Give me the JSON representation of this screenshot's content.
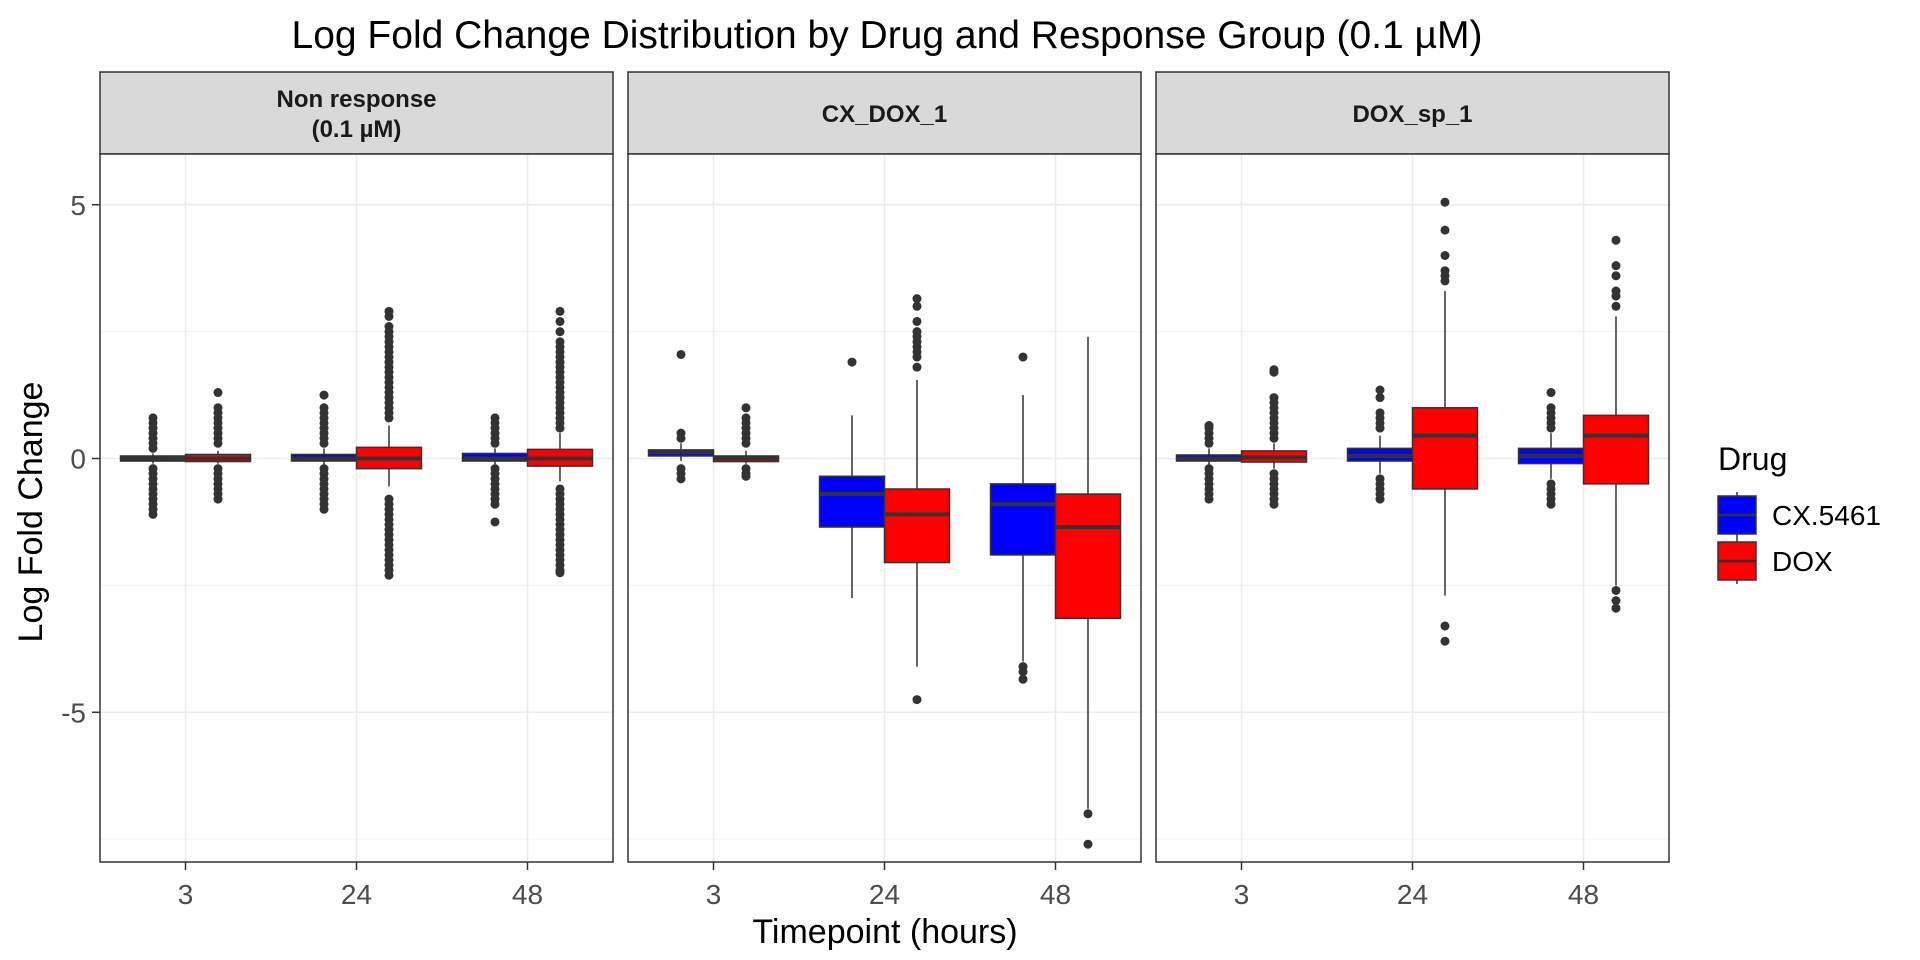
{
  "chart_data": {
    "type": "boxplot",
    "title": "Log Fold Change Distribution by Drug and Response Group (0.1 µM)",
    "xlabel": "Timepoint (hours)",
    "ylabel": "Log Fold Change",
    "ylim": [
      -7.95,
      6.0
    ],
    "yticks": [
      5,
      0,
      -5
    ],
    "ytick_labels": [
      "5",
      "0",
      "-5"
    ],
    "categories": [
      "3",
      "24",
      "48"
    ],
    "legend": {
      "title": "Drug",
      "position": "right",
      "entries": [
        {
          "name": "CX.5461",
          "color": "#0000ff"
        },
        {
          "name": "DOX",
          "color": "#ff0000"
        }
      ]
    },
    "grid": true,
    "panels": [
      {
        "label_lines": [
          "Non response",
          "(0.1 µM)"
        ],
        "boxes": [
          {
            "x": "3",
            "drug": "CX.5461",
            "lower_whisker": -0.1,
            "q1": -0.05,
            "median": 0.0,
            "q3": 0.05,
            "upper_whisker": 0.1,
            "outliers": [
              0.8,
              0.7,
              0.6,
              0.5,
              0.4,
              0.3,
              0.2,
              -0.2,
              -0.3,
              -0.4,
              -0.5,
              -0.6,
              -0.7,
              -0.8,
              -0.9,
              -1.0,
              -1.1
            ]
          },
          {
            "x": "3",
            "drug": "DOX",
            "lower_whisker": -0.1,
            "q1": -0.06,
            "median": 0.0,
            "q3": 0.08,
            "upper_whisker": 0.15,
            "outliers": [
              1.3,
              1.0,
              0.9,
              0.8,
              0.7,
              0.6,
              0.5,
              0.4,
              0.3,
              -0.2,
              -0.3,
              -0.4,
              -0.5,
              -0.6,
              -0.7,
              -0.8
            ]
          },
          {
            "x": "24",
            "drug": "CX.5461",
            "lower_whisker": -0.15,
            "q1": -0.05,
            "median": 0.0,
            "q3": 0.08,
            "upper_whisker": 0.2,
            "outliers": [
              1.25,
              1.0,
              0.9,
              0.8,
              0.7,
              0.6,
              0.5,
              0.4,
              0.3,
              -0.2,
              -0.3,
              -0.4,
              -0.5,
              -0.6,
              -0.7,
              -0.8,
              -0.9,
              -1.0
            ]
          },
          {
            "x": "24",
            "drug": "DOX",
            "lower_whisker": -0.55,
            "q1": -0.2,
            "median": 0.0,
            "q3": 0.22,
            "upper_whisker": 0.65,
            "outliers": [
              2.9,
              2.8,
              2.6,
              2.5,
              2.4,
              2.3,
              2.2,
              2.1,
              2.0,
              1.9,
              1.8,
              1.7,
              1.6,
              1.5,
              1.4,
              1.3,
              1.2,
              1.1,
              1.0,
              0.9,
              0.8,
              -0.8,
              -0.9,
              -1.0,
              -1.1,
              -1.2,
              -1.3,
              -1.4,
              -1.5,
              -1.6,
              -1.7,
              -1.8,
              -1.9,
              -2.0,
              -2.1,
              -2.2,
              -2.3
            ]
          },
          {
            "x": "48",
            "drug": "CX.5461",
            "lower_whisker": -0.15,
            "q1": -0.05,
            "median": 0.0,
            "q3": 0.1,
            "upper_whisker": 0.2,
            "outliers": [
              0.8,
              0.7,
              0.6,
              0.5,
              0.4,
              0.3,
              -0.2,
              -0.3,
              -0.4,
              -0.5,
              -0.6,
              -0.7,
              -0.8,
              -0.9,
              -1.25
            ]
          },
          {
            "x": "48",
            "drug": "DOX",
            "lower_whisker": -0.45,
            "q1": -0.15,
            "median": 0.0,
            "q3": 0.18,
            "upper_whisker": 0.5,
            "outliers": [
              2.9,
              2.7,
              2.5,
              2.3,
              2.2,
              2.1,
              2.0,
              1.9,
              1.8,
              1.7,
              1.6,
              1.5,
              1.4,
              1.3,
              1.2,
              1.1,
              1.0,
              0.9,
              0.8,
              0.7,
              0.6,
              -0.6,
              -0.7,
              -0.8,
              -0.9,
              -1.0,
              -1.1,
              -1.2,
              -1.3,
              -1.4,
              -1.5,
              -1.6,
              -1.7,
              -1.8,
              -1.9,
              -2.0,
              -2.1,
              -2.2,
              -2.25
            ]
          }
        ]
      },
      {
        "label_lines": [
          "CX_DOX_1"
        ],
        "boxes": [
          {
            "x": "3",
            "drug": "CX.5461",
            "lower_whisker": -0.05,
            "q1": 0.05,
            "median": 0.12,
            "q3": 0.17,
            "upper_whisker": 0.3,
            "outliers": [
              2.05,
              0.5,
              0.4,
              -0.2,
              -0.3,
              -0.4
            ]
          },
          {
            "x": "3",
            "drug": "DOX",
            "lower_whisker": -0.1,
            "q1": -0.06,
            "median": 0.0,
            "q3": 0.05,
            "upper_whisker": 0.15,
            "outliers": [
              1.0,
              0.8,
              0.7,
              0.6,
              0.5,
              0.4,
              0.3,
              -0.2,
              -0.3,
              -0.35
            ]
          },
          {
            "x": "24",
            "drug": "CX.5461",
            "lower_whisker": -2.75,
            "q1": -1.35,
            "median": -0.7,
            "q3": -0.35,
            "upper_whisker": 0.85,
            "outliers": [
              1.9
            ]
          },
          {
            "x": "24",
            "drug": "DOX",
            "lower_whisker": -4.1,
            "q1": -2.05,
            "median": -1.1,
            "q3": -0.6,
            "upper_whisker": 1.55,
            "outliers": [
              3.15,
              3.0,
              2.7,
              2.5,
              2.4,
              2.3,
              2.2,
              2.1,
              2.0,
              1.8,
              -4.75
            ]
          },
          {
            "x": "48",
            "drug": "CX.5461",
            "lower_whisker": -4.0,
            "q1": -1.9,
            "median": -0.9,
            "q3": -0.5,
            "upper_whisker": 1.25,
            "outliers": [
              2.0,
              -4.1,
              -4.2,
              -4.35
            ]
          },
          {
            "x": "48",
            "drug": "DOX",
            "lower_whisker": -6.9,
            "q1": -3.15,
            "median": -1.35,
            "q3": -0.7,
            "upper_whisker": 2.4,
            "outliers": [
              -7.0,
              -7.6
            ]
          }
        ]
      },
      {
        "label_lines": [
          "DOX_sp_1"
        ],
        "boxes": [
          {
            "x": "3",
            "drug": "CX.5461",
            "lower_whisker": -0.15,
            "q1": -0.05,
            "median": 0.0,
            "q3": 0.07,
            "upper_whisker": 0.2,
            "outliers": [
              0.65,
              0.6,
              0.5,
              0.4,
              0.3,
              -0.2,
              -0.3,
              -0.4,
              -0.5,
              -0.6,
              -0.7,
              -0.8
            ]
          },
          {
            "x": "3",
            "drug": "DOX",
            "lower_whisker": -0.2,
            "q1": -0.07,
            "median": 0.02,
            "q3": 0.15,
            "upper_whisker": 0.3,
            "outliers": [
              1.75,
              1.7,
              1.2,
              1.1,
              1.0,
              0.9,
              0.8,
              0.7,
              0.6,
              0.5,
              0.4,
              -0.3,
              -0.4,
              -0.5,
              -0.6,
              -0.7,
              -0.8,
              -0.9
            ]
          },
          {
            "x": "24",
            "drug": "CX.5461",
            "lower_whisker": -0.3,
            "q1": -0.05,
            "median": 0.05,
            "q3": 0.2,
            "upper_whisker": 0.45,
            "outliers": [
              1.35,
              1.2,
              0.9,
              0.8,
              0.7,
              0.6,
              -0.4,
              -0.5,
              -0.6,
              -0.7,
              -0.8
            ]
          },
          {
            "x": "24",
            "drug": "DOX",
            "lower_whisker": -2.7,
            "q1": -0.6,
            "median": 0.45,
            "q3": 1.0,
            "upper_whisker": 3.3,
            "outliers": [
              5.05,
              4.5,
              4.0,
              3.7,
              3.6,
              3.5,
              -3.3,
              -3.6
            ]
          },
          {
            "x": "48",
            "drug": "CX.5461",
            "lower_whisker": -0.4,
            "q1": -0.1,
            "median": 0.05,
            "q3": 0.2,
            "upper_whisker": 0.5,
            "outliers": [
              1.3,
              1.0,
              0.9,
              0.8,
              0.7,
              0.6,
              -0.5,
              -0.6,
              -0.7,
              -0.8,
              -0.9
            ]
          },
          {
            "x": "48",
            "drug": "DOX",
            "lower_whisker": -2.5,
            "q1": -0.5,
            "median": 0.45,
            "q3": 0.85,
            "upper_whisker": 2.8,
            "outliers": [
              4.3,
              3.8,
              3.6,
              3.3,
              3.2,
              3.0,
              -2.6,
              -2.8,
              -2.95
            ]
          }
        ]
      }
    ]
  }
}
